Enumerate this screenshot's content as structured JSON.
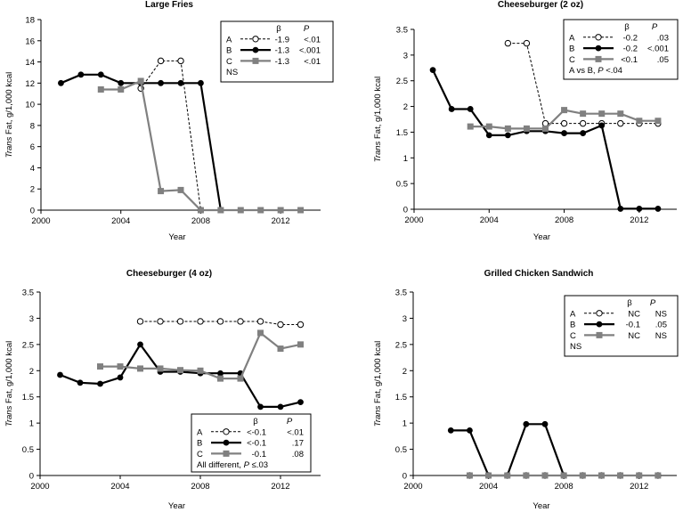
{
  "chart_data": [
    {
      "type": "line",
      "title": "Large Fries",
      "xlabel": "Year",
      "ylabel_italic": "Trans",
      "ylabel_rest": " Fat, g/1,000 kcal",
      "xlim": [
        2000,
        2014
      ],
      "ylim": [
        0,
        18
      ],
      "xticks": [
        2000,
        2004,
        2008,
        2012
      ],
      "yticks": [
        0,
        2,
        4,
        6,
        8,
        10,
        12,
        14,
        16,
        18
      ],
      "ytick_labels": [
        "0",
        "2",
        "4",
        "6",
        "8",
        "10",
        "12",
        "14",
        "16",
        "18"
      ],
      "legend": {
        "header_beta": "β",
        "header_p": "P",
        "rows": [
          {
            "label": "A",
            "beta": "-1.9",
            "p": "<.01"
          },
          {
            "label": "B",
            "beta": "-1.3",
            "p": "<.001"
          },
          {
            "label": "C",
            "beta": "-1.3",
            "p": "<.01"
          }
        ],
        "note_prefix": "",
        "note_p": "",
        "note_suffix": "NS"
      },
      "series": [
        {
          "name": "A",
          "style": "dashed-open",
          "x": [
            2005,
            2006,
            2007,
            2008
          ],
          "y": [
            11.5,
            14.1,
            14.1,
            0
          ]
        },
        {
          "name": "B",
          "style": "solid-filled",
          "x": [
            2001,
            2002,
            2003,
            2004,
            2005,
            2006,
            2007,
            2008,
            2009
          ],
          "y": [
            12,
            12.8,
            12.8,
            12,
            12,
            12,
            12,
            12,
            0
          ]
        },
        {
          "name": "C",
          "style": "gray-square",
          "x": [
            2003,
            2004,
            2005,
            2006,
            2007,
            2008,
            2009,
            2010,
            2011,
            2012,
            2013
          ],
          "y": [
            11.4,
            11.4,
            12.2,
            1.8,
            1.9,
            0,
            0,
            0,
            0,
            0,
            0
          ]
        }
      ]
    },
    {
      "type": "line",
      "title": "Cheeseburger (2 oz)",
      "xlabel": "Year",
      "ylabel_italic": "Trans",
      "ylabel_rest": " Fat, g/1,000 kcal",
      "xlim": [
        2000,
        2014
      ],
      "ylim": [
        0,
        3.5
      ],
      "xticks": [
        2000,
        2004,
        2008,
        2012
      ],
      "yticks": [
        0,
        0.5,
        1,
        1.5,
        2,
        2.5,
        3,
        3.5
      ],
      "ytick_labels": [
        "0",
        "0.5",
        "1",
        "1.5",
        "2",
        "2.5",
        "3",
        "3.5"
      ],
      "legend": {
        "header_beta": "β",
        "header_p": "P",
        "rows": [
          {
            "label": "A",
            "beta": "-0.2",
            "p": ".03"
          },
          {
            "label": "B",
            "beta": "-0.2",
            "p": "<.001"
          },
          {
            "label": "C",
            "beta": "<0.1",
            "p": ".05"
          }
        ],
        "note_prefix": "A vs B, ",
        "note_p": "P",
        "note_suffix": " <.04"
      },
      "series": [
        {
          "name": "A",
          "style": "dashed-open",
          "x": [
            2005,
            2006,
            2007,
            2008,
            2009,
            2010,
            2011,
            2012,
            2013
          ],
          "y": [
            3.23,
            3.23,
            1.67,
            1.67,
            1.67,
            1.67,
            1.67,
            1.67,
            1.67
          ]
        },
        {
          "name": "B",
          "style": "solid-filled",
          "x": [
            2001,
            2002,
            2003,
            2004,
            2005,
            2006,
            2007,
            2008,
            2009,
            2010,
            2011,
            2012,
            2013
          ],
          "y": [
            2.71,
            1.95,
            1.95,
            1.44,
            1.44,
            1.52,
            1.52,
            1.48,
            1.48,
            1.63,
            0.01,
            0.01,
            0.01
          ]
        },
        {
          "name": "C",
          "style": "gray-square",
          "x": [
            2003,
            2004,
            2005,
            2006,
            2007,
            2008,
            2009,
            2010,
            2011,
            2012,
            2013
          ],
          "y": [
            1.61,
            1.61,
            1.57,
            1.57,
            1.57,
            1.93,
            1.86,
            1.86,
            1.86,
            1.72,
            1.72
          ]
        }
      ]
    },
    {
      "type": "line",
      "title": "Cheeseburger (4 oz)",
      "xlabel": "Year",
      "ylabel_italic": "Trans",
      "ylabel_rest": " Fat, g/1,000 kcal",
      "xlim": [
        2000,
        2014
      ],
      "ylim": [
        0,
        3.5
      ],
      "xticks": [
        2000,
        2004,
        2008,
        2012
      ],
      "yticks": [
        0,
        0.5,
        1,
        1.5,
        2,
        2.5,
        3,
        3.5
      ],
      "ytick_labels": [
        "0",
        "0.5",
        "1",
        "1.5",
        "2",
        "2.5",
        "3",
        "3.5"
      ],
      "legend": {
        "header_beta": "β",
        "header_p": "P",
        "rows": [
          {
            "label": "A",
            "beta": "<-0.1",
            "p": "<.01"
          },
          {
            "label": "B",
            "beta": "<-0.1",
            "p": ".17"
          },
          {
            "label": "C",
            "beta": "-0.1",
            "p": ".08"
          }
        ],
        "note_prefix": "All different, ",
        "note_p": "P",
        "note_suffix": " ≤.03"
      },
      "series": [
        {
          "name": "A",
          "style": "dashed-open",
          "x": [
            2005,
            2006,
            2007,
            2008,
            2009,
            2010,
            2011,
            2012,
            2013
          ],
          "y": [
            2.94,
            2.94,
            2.94,
            2.94,
            2.94,
            2.94,
            2.94,
            2.88,
            2.88
          ]
        },
        {
          "name": "B",
          "style": "solid-filled",
          "x": [
            2001,
            2002,
            2003,
            2004,
            2005,
            2006,
            2007,
            2008,
            2009,
            2010,
            2011,
            2012,
            2013
          ],
          "y": [
            1.92,
            1.77,
            1.75,
            1.87,
            2.5,
            1.98,
            1.98,
            1.95,
            1.95,
            1.95,
            1.31,
            1.31,
            1.4
          ]
        },
        {
          "name": "C",
          "style": "gray-square",
          "x": [
            2003,
            2004,
            2005,
            2006,
            2007,
            2008,
            2009,
            2010,
            2011,
            2012,
            2013
          ],
          "y": [
            2.08,
            2.08,
            2.04,
            2.04,
            2.01,
            2.0,
            1.85,
            1.85,
            2.72,
            2.42,
            2.5
          ]
        }
      ]
    },
    {
      "type": "line",
      "title": "Grilled Chicken Sandwich",
      "xlabel": "Year",
      "ylabel_italic": "Trans",
      "ylabel_rest": " Fat, g/1,000 kcal",
      "xlim": [
        2000,
        2014
      ],
      "ylim": [
        0,
        3.5
      ],
      "xticks": [
        2000,
        2004,
        2008,
        2012
      ],
      "yticks": [
        0,
        0.5,
        1,
        1.5,
        2,
        2.5,
        3,
        3.5
      ],
      "ytick_labels": [
        "0",
        "0.5",
        "1",
        "1.5",
        "2",
        "2.5",
        "3",
        "3.5"
      ],
      "legend": {
        "header_beta": "β",
        "header_p": "P",
        "rows": [
          {
            "label": "A",
            "beta": "NC",
            "p": "NS"
          },
          {
            "label": "B",
            "beta": "-0.1",
            "p": ".05"
          },
          {
            "label": "C",
            "beta": "NC",
            "p": "NS"
          }
        ],
        "note_prefix": "",
        "note_p": "",
        "note_suffix": "NS"
      },
      "series": [
        {
          "name": "A",
          "style": "dashed-open",
          "x": [
            2003,
            2004,
            2005,
            2006,
            2007,
            2008,
            2009,
            2010,
            2011,
            2012,
            2013
          ],
          "y": [
            0,
            0,
            0,
            0,
            0,
            0,
            0,
            0,
            0,
            0,
            0
          ]
        },
        {
          "name": "B",
          "style": "solid-filled",
          "x": [
            2002,
            2003,
            2004,
            2005,
            2006,
            2007,
            2008
          ],
          "y": [
            0.86,
            0.86,
            0,
            0,
            0.98,
            0.98,
            0
          ]
        },
        {
          "name": "C",
          "style": "gray-square",
          "x": [
            2003,
            2004,
            2005,
            2006,
            2007,
            2008,
            2009,
            2010,
            2011,
            2012,
            2013
          ],
          "y": [
            0,
            0,
            0,
            0,
            0,
            0,
            0,
            0,
            0,
            0,
            0
          ]
        }
      ]
    }
  ]
}
